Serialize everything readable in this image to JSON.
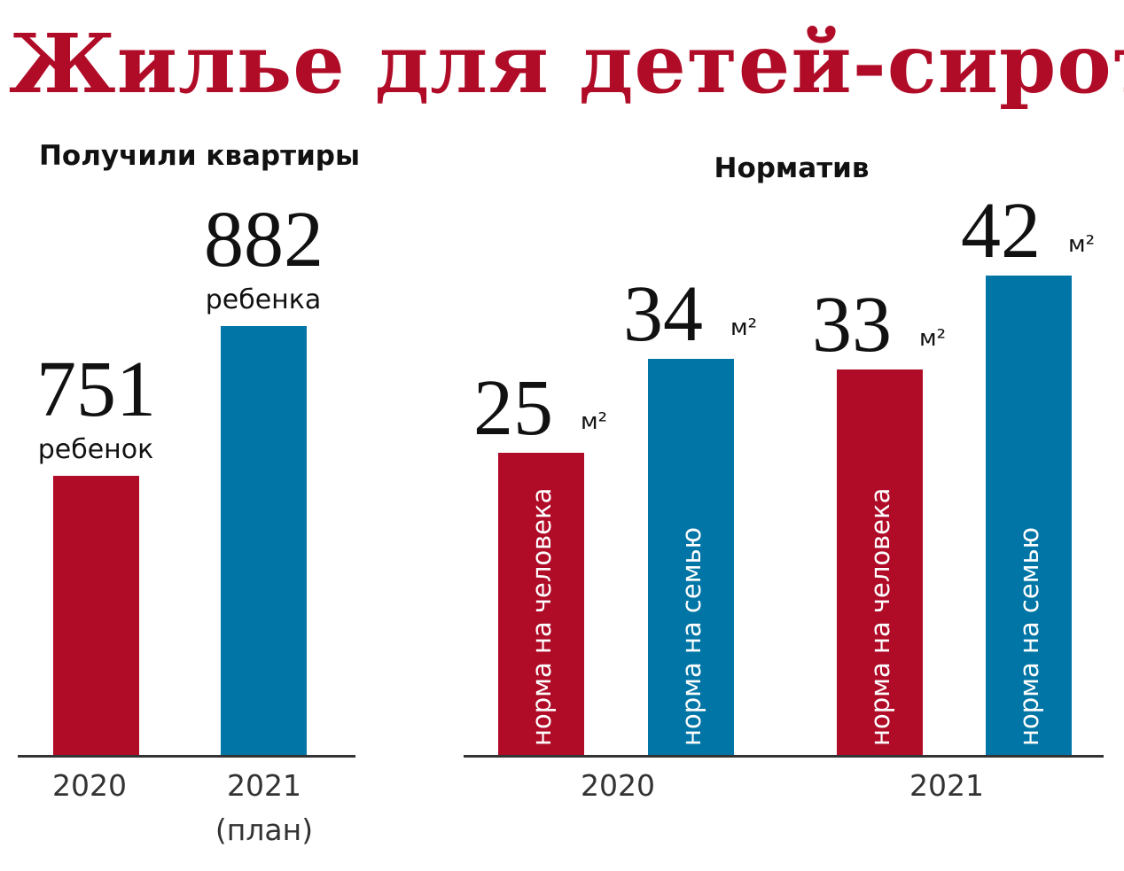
{
  "title": "Жилье для детей-сирот",
  "colors": {
    "red": "#B00C28",
    "blue": "#0075A6"
  },
  "chart_data": [
    {
      "type": "bar",
      "title": "Получили квартиры",
      "categories": [
        "2020",
        "2021"
      ],
      "category_sublabels": [
        "",
        "(план)"
      ],
      "values": [
        751,
        882
      ],
      "value_captions": [
        "ребенок",
        "ребенка"
      ],
      "colors": [
        "red",
        "blue"
      ],
      "ylim": [
        507,
        900
      ]
    },
    {
      "type": "bar",
      "title": "Норматив",
      "categories": [
        "2020",
        "2021"
      ],
      "series": [
        {
          "name": "норма на человека",
          "values": [
            25,
            33
          ],
          "color": "red"
        },
        {
          "name": "норма на семью",
          "values": [
            34,
            42
          ],
          "color": "blue"
        }
      ],
      "unit": "м²",
      "ylim": [
        -4,
        45
      ]
    }
  ]
}
